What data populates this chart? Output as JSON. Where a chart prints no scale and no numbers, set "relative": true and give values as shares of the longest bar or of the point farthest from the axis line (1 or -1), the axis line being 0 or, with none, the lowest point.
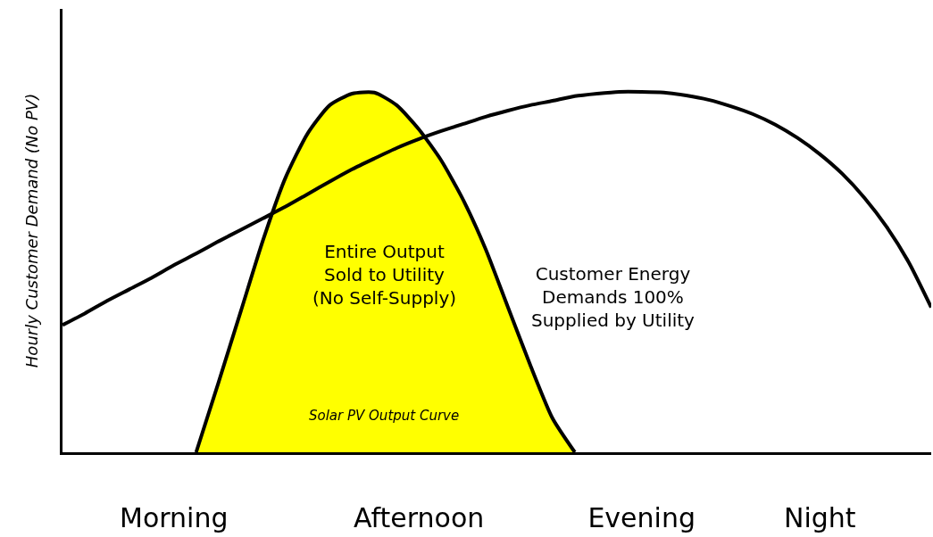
{
  "chart_data": {
    "type": "line",
    "relative": true,
    "ylabel": "Hourly Customer Demand (No PV)",
    "categories": [
      null,
      null,
      null,
      null,
      null,
      "Morning",
      null,
      null,
      null,
      null,
      null,
      null,
      null,
      null,
      null,
      null,
      "Afternoon",
      null,
      null,
      null,
      null,
      null,
      null,
      null,
      null,
      null,
      "Evening",
      null,
      null,
      null,
      null,
      null,
      null,
      null,
      "Night",
      null,
      null,
      null,
      null,
      null
    ],
    "series": [
      {
        "color": "#000000",
        "values": [
          0.353,
          0.385,
          0.42,
          0.452,
          0.484,
          0.519,
          0.551,
          0.585,
          0.617,
          0.649,
          0.681,
          0.716,
          0.751,
          0.785,
          0.815,
          0.844,
          0.869,
          0.891,
          0.911,
          0.931,
          0.948,
          0.963,
          0.975,
          0.988,
          0.995,
          1,
          1,
          0.998,
          0.99,
          0.978,
          0.96,
          0.938,
          0.909,
          0.872,
          0.827,
          0.773,
          0.706,
          0.625,
          0.526,
          0.402
        ]
      },
      {
        "type": "area",
        "color": "#ffff00",
        "values": [
          null,
          null,
          null,
          null,
          null,
          null,
          0,
          0.193,
          0.39,
          0.588,
          0.76,
          0.884,
          0.963,
          0.995,
          0.998,
          0.963,
          0.896,
          0.81,
          0.699,
          0.563,
          0.402,
          0.242,
          0.094,
          0,
          null,
          null,
          null,
          null,
          null,
          null,
          null,
          null,
          null,
          null,
          null,
          null,
          null,
          null,
          null,
          null
        ]
      }
    ],
    "annotations": [
      "Entire Output\nSold to Utility\n(No Self-Supply)",
      "Customer Energy\nDemands 100%\nSupplied by Utility",
      "Solar PV Output Curve"
    ]
  }
}
